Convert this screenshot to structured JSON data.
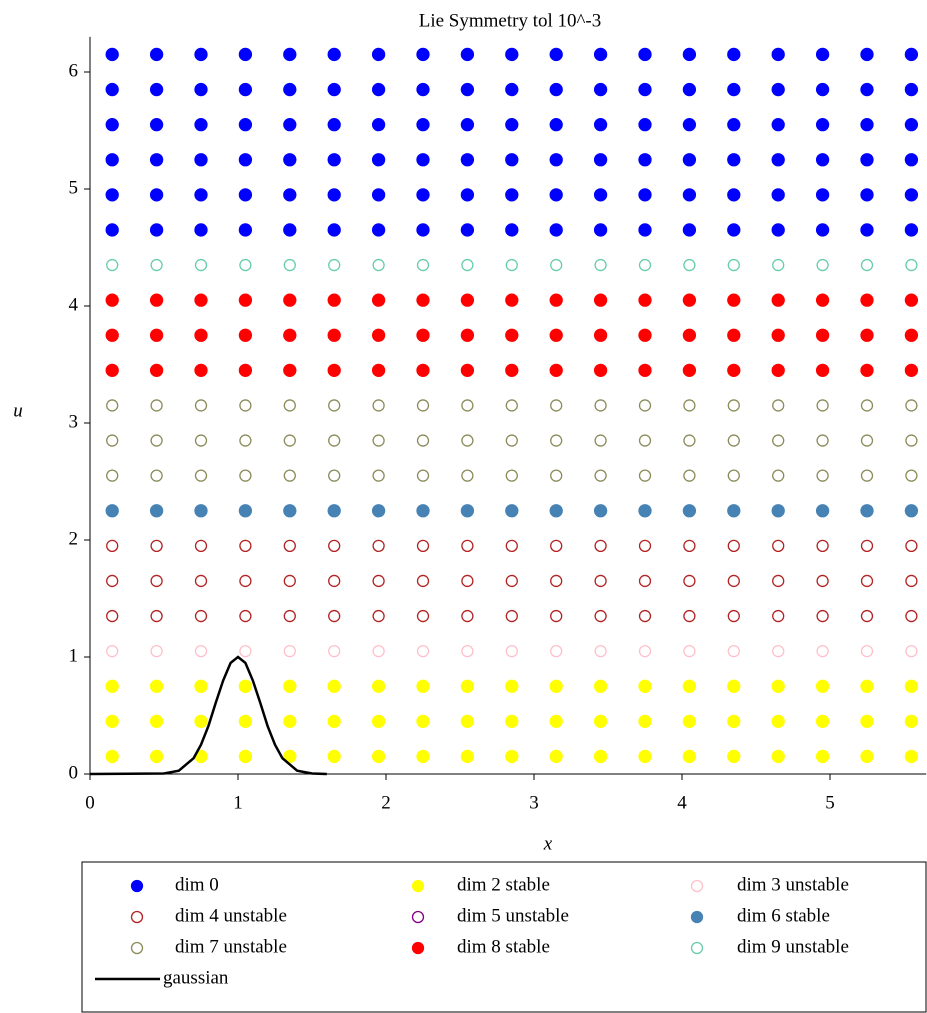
{
  "chart_data": {
    "type": "scatter",
    "title": "Lie Symmetry tol 10^-3",
    "xlabel": "x",
    "ylabel": "u",
    "xlim": [
      0,
      5.65
    ],
    "ylim": [
      0,
      6.3
    ],
    "xticks": [
      0,
      1,
      2,
      3,
      4,
      5
    ],
    "yticks": [
      0,
      1,
      2,
      3,
      4,
      5,
      6
    ],
    "x": [
      0.15,
      0.45,
      0.75,
      1.05,
      1.35,
      1.65,
      1.95,
      2.25,
      2.55,
      2.85,
      3.15,
      3.45,
      3.75,
      4.05,
      4.35,
      4.65,
      4.95,
      5.25,
      5.55
    ],
    "series": [
      {
        "name": "dim 0",
        "color": "#0000ff",
        "filled": true,
        "values": [
          4.65,
          4.95,
          5.25,
          5.55,
          5.85,
          6.15
        ]
      },
      {
        "name": "dim 2 stable",
        "color": "#ffff00",
        "filled": true,
        "values": [
          0.15,
          0.45,
          0.75
        ]
      },
      {
        "name": "dim 3 unstable",
        "color": "#ffc0cb",
        "filled": false,
        "values": [
          1.05
        ]
      },
      {
        "name": "dim 4 unstable",
        "color": "#b22222",
        "filled": false,
        "values": [
          1.35,
          1.65,
          1.95
        ]
      },
      {
        "name": "dim 5 unstable",
        "color": "#800080",
        "filled": false,
        "values": []
      },
      {
        "name": "dim 6 stable",
        "color": "#4682b4",
        "filled": true,
        "values": [
          2.25
        ]
      },
      {
        "name": "dim 7 unstable",
        "color": "#8b8b5a",
        "filled": false,
        "values": [
          2.55,
          2.85,
          3.15
        ]
      },
      {
        "name": "dim 8 stable",
        "color": "#ff0000",
        "filled": true,
        "values": [
          3.45,
          3.75,
          4.05
        ]
      },
      {
        "name": "dim 9 unstable",
        "color": "#66cdaa",
        "filled": false,
        "values": [
          4.35
        ]
      },
      {
        "name": "gaussian",
        "color": "#000000",
        "type": "line",
        "x": [
          0,
          0.5,
          0.6,
          0.7,
          0.75,
          0.8,
          0.85,
          0.9,
          0.95,
          1,
          1.05,
          1.1,
          1.15,
          1.2,
          1.25,
          1.3,
          1.4,
          1.5,
          1.6
        ],
        "values": [
          0,
          0.004,
          0.028,
          0.135,
          0.25,
          0.41,
          0.61,
          0.8,
          0.95,
          1,
          0.95,
          0.8,
          0.61,
          0.41,
          0.25,
          0.135,
          0.028,
          0.004,
          0
        ]
      }
    ]
  }
}
